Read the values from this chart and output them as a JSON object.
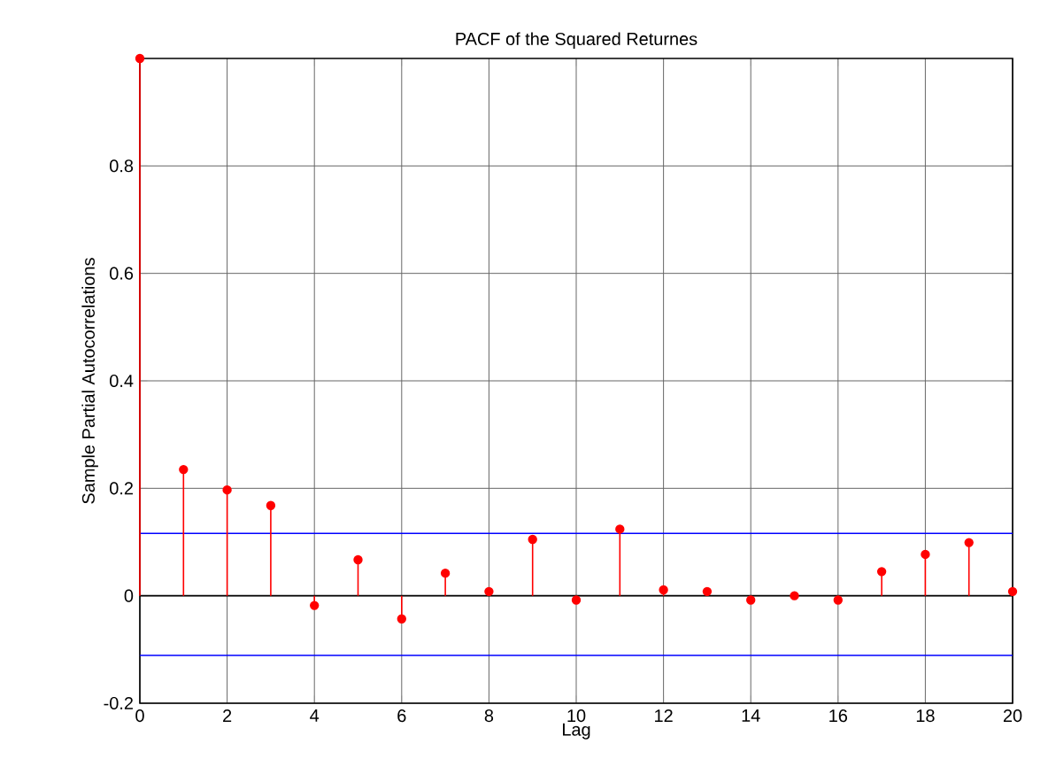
{
  "chart_data": {
    "type": "lollipop",
    "title": "PACF of the Squared Returnes",
    "xlabel": "Lag",
    "ylabel": "Sample Partial Autocorrelations",
    "x": [
      0,
      1,
      2,
      3,
      4,
      5,
      6,
      7,
      8,
      9,
      10,
      11,
      12,
      13,
      14,
      15,
      16,
      17,
      18,
      19,
      20
    ],
    "values": [
      1,
      0.235,
      0.197,
      0.168,
      -0.018,
      0.067,
      -0.043,
      0.042,
      0.008,
      0.105,
      -0.008,
      0.124,
      0.011,
      0.008,
      -0.008,
      0,
      -0.008,
      0.045,
      0.077,
      0.099,
      0.008
    ],
    "color": "#ff0000",
    "marker": "circle",
    "xlim": [
      0,
      20
    ],
    "ylim": [
      -0.2,
      1
    ],
    "xticks": [
      0,
      2,
      4,
      6,
      8,
      10,
      12,
      14,
      16,
      18,
      20
    ],
    "yticks": [
      -0.2,
      0,
      0.2,
      0.4,
      0.6,
      0.8
    ],
    "grid": true,
    "ref_lines": [
      {
        "axis": "y",
        "value": 0.116,
        "color": "#0000ff"
      },
      {
        "axis": "y",
        "value": -0.111,
        "color": "#0000ff"
      },
      {
        "axis": "y",
        "value": 0,
        "color": "#000000"
      }
    ]
  }
}
